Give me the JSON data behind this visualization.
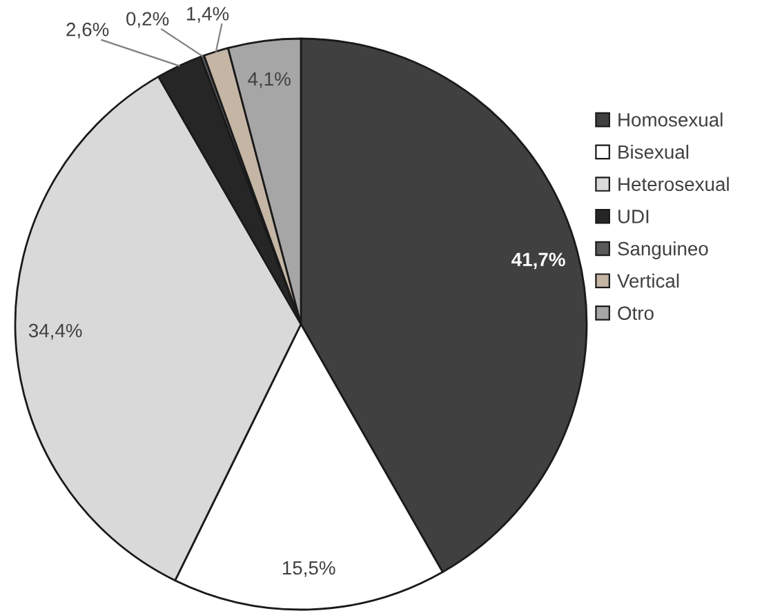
{
  "chart_data": {
    "type": "pie",
    "categories": [
      "Homosexual",
      "Bisexual",
      "Heterosexual",
      "UDI",
      "Sanguineo",
      "Vertical",
      "Otro"
    ],
    "values": [
      41.7,
      15.5,
      34.4,
      2.6,
      0.2,
      1.4,
      4.1
    ],
    "colors": [
      "#404040",
      "#ffffff",
      "#d9d9d9",
      "#262626",
      "#595959",
      "#c4b5a5",
      "#a6a6a6"
    ],
    "value_labels": [
      "41,7%",
      "15,5%",
      "34,4%",
      "2,6%",
      "0,2%",
      "1,4%",
      "4,1%"
    ],
    "legend": "right"
  }
}
